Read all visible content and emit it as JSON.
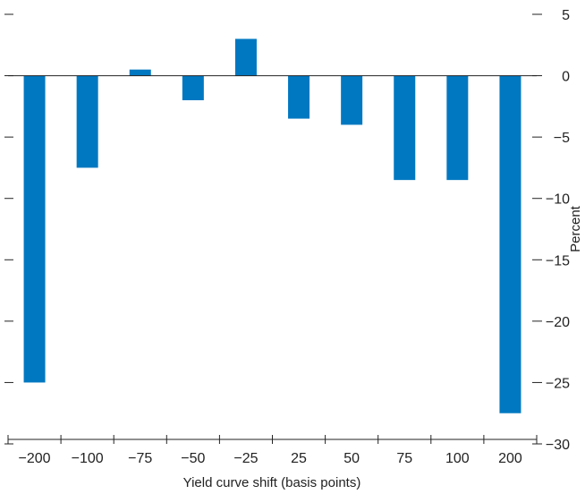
{
  "chart_data": {
    "type": "bar",
    "categories": [
      "−200",
      "−100",
      "−75",
      "−50",
      "−25",
      "25",
      "50",
      "75",
      "100",
      "200"
    ],
    "values": [
      -25,
      -7.5,
      0.5,
      -2,
      3,
      -3.5,
      -4,
      -8.5,
      -8.5,
      -27.5
    ],
    "xlabel": "Yield curve shift (basis points)",
    "ylabel": "Percent",
    "ylim": [
      -30,
      5
    ],
    "yticks": [
      5,
      0,
      -5,
      -10,
      -15,
      -20,
      -25,
      -30
    ],
    "ytick_labels": [
      "5",
      "0",
      "−5",
      "−10",
      "−15",
      "−20",
      "−25",
      "−30"
    ],
    "y_axis_side": "right",
    "grid": false,
    "bar_color": "#0078C1"
  }
}
